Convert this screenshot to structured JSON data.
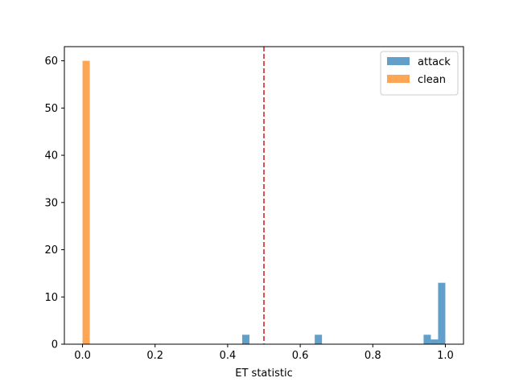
{
  "chart_data": {
    "type": "bar",
    "title": "",
    "xlabel": "ET statistic",
    "ylabel": "",
    "xlim": [
      -0.05,
      1.05
    ],
    "ylim": [
      0,
      63
    ],
    "xticks": [
      0.0,
      0.2,
      0.4,
      0.6,
      0.8,
      1.0
    ],
    "xtick_labels": [
      "0.0",
      "0.2",
      "0.4",
      "0.6",
      "0.8",
      "1.0"
    ],
    "yticks": [
      0,
      10,
      20,
      30,
      40,
      50,
      60
    ],
    "ytick_labels": [
      "0",
      "10",
      "20",
      "30",
      "40",
      "50",
      "60"
    ],
    "bin_width": 0.02,
    "series": [
      {
        "name": "attack",
        "color": "#1f77b4",
        "opacity": 0.7,
        "bins": [
          {
            "x0": 0.44,
            "x1": 0.46,
            "count": 2
          },
          {
            "x0": 0.64,
            "x1": 0.66,
            "count": 2
          },
          {
            "x0": 0.94,
            "x1": 0.96,
            "count": 2
          },
          {
            "x0": 0.96,
            "x1": 0.98,
            "count": 1
          },
          {
            "x0": 0.98,
            "x1": 1.0,
            "count": 13
          }
        ]
      },
      {
        "name": "clean",
        "color": "#ff7f0e",
        "opacity": 0.7,
        "bins": [
          {
            "x0": 0.0,
            "x1": 0.02,
            "count": 60
          }
        ]
      }
    ],
    "threshold_line": {
      "x": 0.5,
      "color": "#d62728",
      "style": "dashed"
    },
    "legend": {
      "position": "top-right"
    },
    "grid": false
  }
}
